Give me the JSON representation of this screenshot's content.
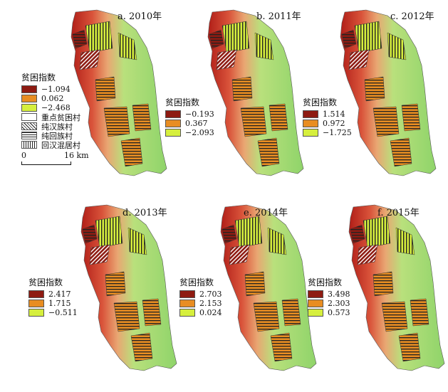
{
  "colors": {
    "lo": "#d6ef3d",
    "mid": "#e88d22",
    "hi": "#8e1b12",
    "terrain_green": "#9fd86c",
    "terrain_light": "#c8ec8a",
    "terrain_red": "#c8362a",
    "terrain_orange": "#e6a070"
  },
  "village_types": [
    "重点贫困村",
    "纯汉族村",
    "纯回族村",
    "回汉混居村"
  ],
  "scale": {
    "zero": "0",
    "distance": "16 km"
  },
  "panels": [
    {
      "title": "a. 2010年",
      "legend_title": "贫困指数",
      "values": [
        "−1.094",
        "0.062",
        "−2.468"
      ]
    },
    {
      "title": "b. 2011年",
      "legend_title": "贫困指数",
      "values": [
        "−0.193",
        "0.367",
        "−2.093"
      ]
    },
    {
      "title": "c. 2012年",
      "legend_title": "贫困指数",
      "values": [
        "1.514",
        "0.972",
        "−1.725"
      ]
    },
    {
      "title": "d. 2013年",
      "legend_title": "贫困指数",
      "values": [
        "2.417",
        "1.715",
        "−0.511"
      ]
    },
    {
      "title": "e. 2014年",
      "legend_title": "贫困指数",
      "values": [
        "2.703",
        "2.153",
        "0.024"
      ]
    },
    {
      "title": "f. 2015年",
      "legend_title": "贫困指数",
      "values": [
        "3.498",
        "2.303",
        "0.573"
      ]
    }
  ]
}
